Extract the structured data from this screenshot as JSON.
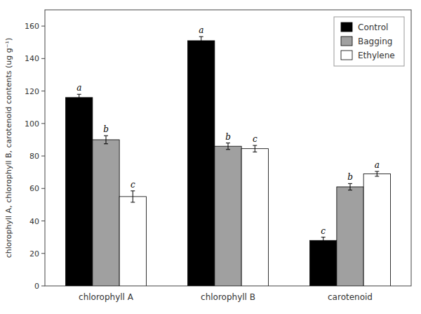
{
  "chart_data": {
    "type": "bar",
    "categories": [
      "chlorophyll A",
      "chlorophyll B",
      "carotenoid"
    ],
    "series": [
      {
        "name": "Control",
        "color": "#000000",
        "values": [
          116,
          151,
          28
        ],
        "errors": [
          2.0,
          2.5,
          2.0
        ],
        "letters": [
          "a",
          "a",
          "c"
        ]
      },
      {
        "name": "Bagging",
        "color": "#a0a0a0",
        "values": [
          90,
          86,
          61
        ],
        "errors": [
          2.5,
          2.0,
          2.0
        ],
        "letters": [
          "b",
          "b",
          "b"
        ]
      },
      {
        "name": "Ethylene",
        "color": "#ffffff",
        "values": [
          55,
          84.5,
          69
        ],
        "errors": [
          3.5,
          2.0,
          1.5
        ],
        "letters": [
          "c",
          "c",
          "a"
        ]
      }
    ],
    "y_label": "chlorophyll A, chlorophyll B, carotenoid contents (ug g⁻¹)",
    "ylim": [
      0,
      170
    ],
    "yticks": [
      0,
      20,
      40,
      60,
      80,
      100,
      120,
      140,
      160
    ],
    "legend": "top-right",
    "grid": false
  }
}
